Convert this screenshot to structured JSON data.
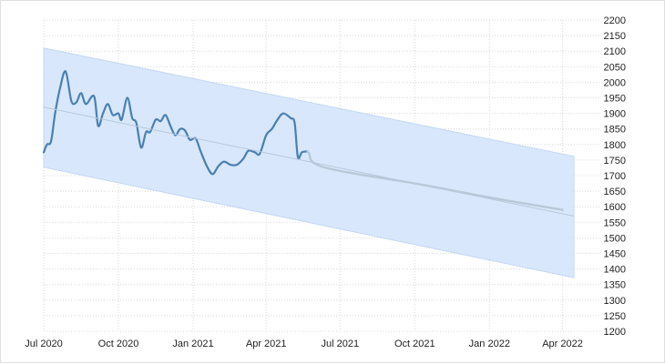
{
  "chart_data": {
    "type": "line",
    "title": "",
    "xlabel": "",
    "ylabel": "",
    "x_range": [
      "2020-07-01",
      "2022-04-15"
    ],
    "ylim": [
      1200,
      2200
    ],
    "y_ticks": [
      1200,
      1250,
      1300,
      1350,
      1400,
      1450,
      1500,
      1550,
      1600,
      1650,
      1700,
      1750,
      1800,
      1850,
      1900,
      1950,
      2000,
      2050,
      2100,
      2150,
      2200
    ],
    "x_ticks": [
      {
        "date": "2020-07-01",
        "label": "Jul 2020"
      },
      {
        "date": "2020-10-01",
        "label": "Oct 2020"
      },
      {
        "date": "2021-01-01",
        "label": "Jan 2021"
      },
      {
        "date": "2021-04-01",
        "label": "Apr 2021"
      },
      {
        "date": "2021-07-01",
        "label": "Jul 2021"
      },
      {
        "date": "2021-10-01",
        "label": "Oct 2021"
      },
      {
        "date": "2022-01-01",
        "label": "Jan 2022"
      },
      {
        "date": "2022-04-01",
        "label": "Apr 2022"
      }
    ],
    "grid": true,
    "y_axis_side": "right",
    "series": [
      {
        "role": "actual",
        "color": "#4a7fb0",
        "points": [
          [
            "2020-07-01",
            1775
          ],
          [
            "2020-07-05",
            1800
          ],
          [
            "2020-07-10",
            1810
          ],
          [
            "2020-07-15",
            1900
          ],
          [
            "2020-07-21",
            1980
          ],
          [
            "2020-07-28",
            2035
          ],
          [
            "2020-08-04",
            1940
          ],
          [
            "2020-08-10",
            1935
          ],
          [
            "2020-08-16",
            1965
          ],
          [
            "2020-08-22",
            1930
          ],
          [
            "2020-09-01",
            1955
          ],
          [
            "2020-09-06",
            1860
          ],
          [
            "2020-09-12",
            1900
          ],
          [
            "2020-09-18",
            1930
          ],
          [
            "2020-09-24",
            1895
          ],
          [
            "2020-10-01",
            1900
          ],
          [
            "2020-10-05",
            1880
          ],
          [
            "2020-10-12",
            1950
          ],
          [
            "2020-10-18",
            1885
          ],
          [
            "2020-10-23",
            1870
          ],
          [
            "2020-10-29",
            1790
          ],
          [
            "2020-11-04",
            1840
          ],
          [
            "2020-11-09",
            1840
          ],
          [
            "2020-11-16",
            1880
          ],
          [
            "2020-11-22",
            1875
          ],
          [
            "2020-11-28",
            1895
          ],
          [
            "2020-12-04",
            1860
          ],
          [
            "2020-12-10",
            1830
          ],
          [
            "2020-12-16",
            1850
          ],
          [
            "2020-12-22",
            1845
          ],
          [
            "2020-12-28",
            1815
          ],
          [
            "2021-01-04",
            1820
          ],
          [
            "2021-01-10",
            1780
          ],
          [
            "2021-01-18",
            1730
          ],
          [
            "2021-01-25",
            1705
          ],
          [
            "2021-02-01",
            1730
          ],
          [
            "2021-02-08",
            1745
          ],
          [
            "2021-02-16",
            1735
          ],
          [
            "2021-02-24",
            1735
          ],
          [
            "2021-03-04",
            1755
          ],
          [
            "2021-03-10",
            1780
          ],
          [
            "2021-03-18",
            1775
          ],
          [
            "2021-03-24",
            1770
          ],
          [
            "2021-04-01",
            1830
          ],
          [
            "2021-04-08",
            1850
          ],
          [
            "2021-04-15",
            1880
          ],
          [
            "2021-04-22",
            1900
          ],
          [
            "2021-05-01",
            1885
          ],
          [
            "2021-05-06",
            1870
          ],
          [
            "2021-05-10",
            1760
          ],
          [
            "2021-05-15",
            1775
          ],
          [
            "2021-05-22",
            1778
          ]
        ]
      },
      {
        "role": "forecast",
        "color": "#b9c7d8",
        "points": [
          [
            "2021-05-22",
            1778
          ],
          [
            "2021-05-24",
            1770
          ],
          [
            "2021-05-30",
            1740
          ],
          [
            "2021-07-01",
            1715
          ],
          [
            "2021-10-01",
            1675
          ],
          [
            "2022-01-01",
            1630
          ],
          [
            "2022-04-01",
            1590
          ]
        ]
      },
      {
        "role": "trend",
        "color": "#b8c9dc",
        "points": [
          [
            "2020-07-01",
            1920
          ],
          [
            "2022-04-15",
            1570
          ]
        ]
      }
    ],
    "band": {
      "color": "#d6e6fb",
      "upper": [
        [
          "2020-07-01",
          2110
        ],
        [
          "2022-04-15",
          1762
        ]
      ],
      "lower": [
        [
          "2020-07-01",
          1727
        ],
        [
          "2022-04-15",
          1372
        ]
      ]
    }
  }
}
